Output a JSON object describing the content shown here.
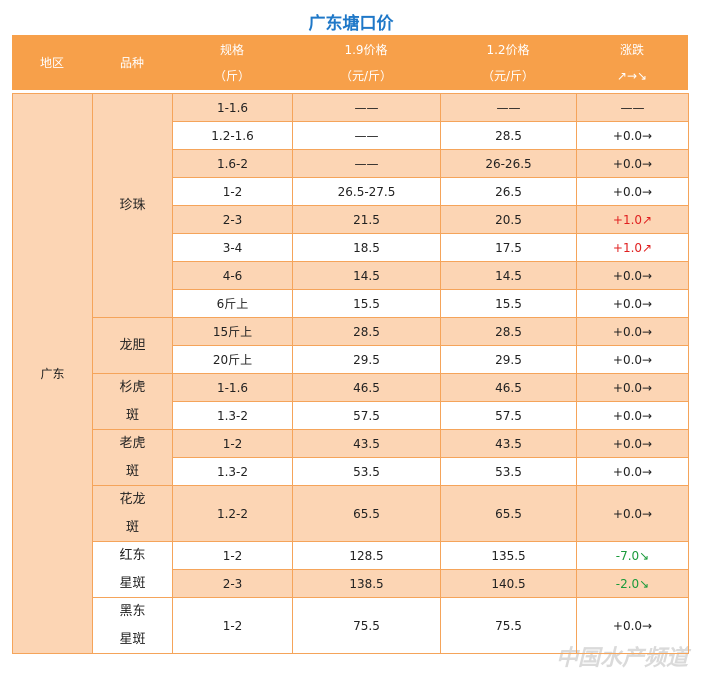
{
  "title": "广东塘口价",
  "header": [
    [
      "地区"
    ],
    [
      "品种"
    ],
    [
      "规格",
      "（斤）"
    ],
    [
      "1.9价格",
      "（元/斤）"
    ],
    [
      "1.2价格",
      "（元/斤）"
    ],
    [
      "涨跌",
      "↗→↘"
    ]
  ],
  "region": "广东",
  "groups": [
    {
      "variety": "珍珠",
      "rows": [
        [
          "1-1.6",
          "——",
          "——",
          "——"
        ],
        [
          "1.2-1.6",
          "——",
          "28.5",
          "+0.0→"
        ],
        [
          "1.6-2",
          "——",
          "26-26.5",
          "+0.0→"
        ],
        [
          "1-2",
          "26.5-27.5",
          "26.5",
          "+0.0→"
        ],
        [
          "2-3",
          "21.5",
          "20.5",
          "+1.0↗"
        ],
        [
          "3-4",
          "18.5",
          "17.5",
          "+1.0↗"
        ],
        [
          "4-6",
          "14.5",
          "14.5",
          "+0.0→"
        ],
        [
          "6斤上",
          "15.5",
          "15.5",
          "+0.0→"
        ]
      ]
    },
    {
      "variety": "龙胆",
      "rows": [
        [
          "15斤上",
          "28.5",
          "28.5",
          "+0.0→"
        ],
        [
          "20斤上",
          "29.5",
          "29.5",
          "+0.0→"
        ]
      ]
    },
    {
      "variety": "杉虎斑",
      "rows": [
        [
          "1-1.6",
          "46.5",
          "46.5",
          "+0.0→"
        ],
        [
          "1.3-2",
          "57.5",
          "57.5",
          "+0.0→"
        ]
      ]
    },
    {
      "variety": "老虎斑",
      "rows": [
        [
          "1-2",
          "43.5",
          "43.5",
          "+0.0→"
        ],
        [
          "1.3-2",
          "53.5",
          "53.5",
          "+0.0→"
        ]
      ]
    },
    {
      "variety": "花龙斑",
      "rows": [
        [
          "1.2-2",
          "65.5",
          "65.5",
          "+0.0→"
        ]
      ]
    },
    {
      "variety": "红东星斑",
      "rows": [
        [
          "1-2",
          "128.5",
          "135.5",
          "-7.0↘"
        ],
        [
          "2-3",
          "138.5",
          "140.5",
          "-2.0↘"
        ]
      ]
    },
    {
      "variety": "黑东星斑",
      "rows": [
        [
          "1-2",
          "75.5",
          "75.5",
          "+0.0→"
        ]
      ]
    }
  ],
  "watermark": "中国水产频道"
}
